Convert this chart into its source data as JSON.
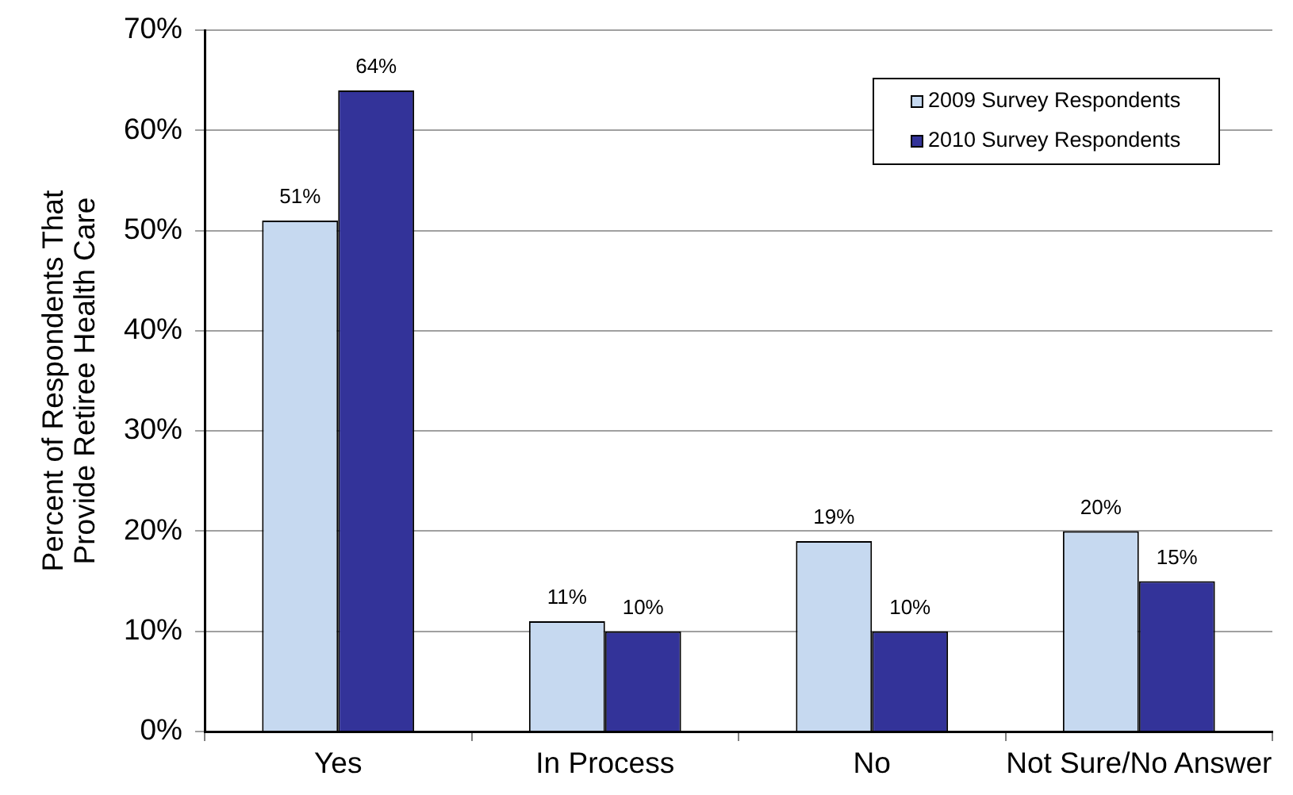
{
  "chart_data": {
    "type": "bar",
    "ylabel": "Percent of Respondents That\nProvide Retiree Health Care",
    "categories": [
      "Yes",
      "In Process",
      "No",
      "Not Sure/No Answer"
    ],
    "series": [
      {
        "name": "2009 Survey Respondents",
        "color": "#c6d9f0",
        "values": [
          51,
          11,
          19,
          20
        ],
        "value_labels": [
          "51%",
          "11%",
          "19%",
          "20%"
        ]
      },
      {
        "name": "2010 Survey Respondents",
        "color": "#333399",
        "values": [
          64,
          10,
          10,
          15
        ],
        "value_labels": [
          "64%",
          "10%",
          "10%",
          "15%"
        ]
      }
    ],
    "ylim": [
      0,
      70
    ],
    "yticks": [
      {
        "value": 0,
        "label": "0%"
      },
      {
        "value": 10,
        "label": "10%"
      },
      {
        "value": 20,
        "label": "20%"
      },
      {
        "value": 30,
        "label": "30%"
      },
      {
        "value": 40,
        "label": "40%"
      },
      {
        "value": 50,
        "label": "50%"
      },
      {
        "value": 60,
        "label": "60%"
      },
      {
        "value": 70,
        "label": "70%"
      }
    ],
    "grid": "y",
    "legend": "top right"
  }
}
